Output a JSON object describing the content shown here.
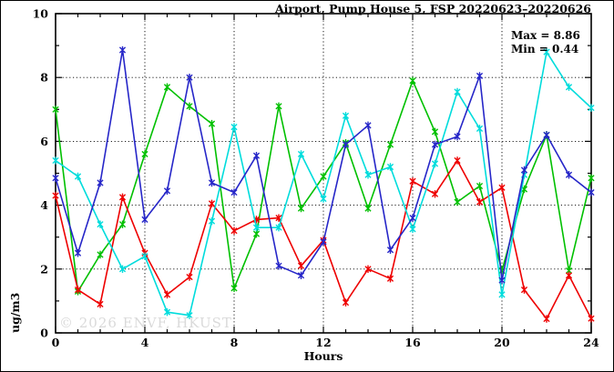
{
  "chart": {
    "watermark": "© 2026 ENVF, HKUST",
    "annotation": {
      "max": "Max = 8.86",
      "min": "Min = 0.44"
    }
  },
  "chart_data": {
    "type": "line",
    "title": "Airport, Pump House 5, FSP 20220623–20220626",
    "xlabel": "Hours",
    "ylabel": "ug/m3",
    "xlim": [
      0,
      24
    ],
    "ylim": [
      0,
      10
    ],
    "xticks": [
      0,
      4,
      8,
      12,
      16,
      20,
      24
    ],
    "yticks": [
      0,
      2,
      4,
      6,
      8,
      10
    ],
    "grid": true,
    "legend": false,
    "max": 8.86,
    "min": 0.44,
    "x": [
      0,
      1,
      2,
      3,
      4,
      5,
      6,
      7,
      8,
      9,
      10,
      11,
      12,
      13,
      14,
      15,
      16,
      17,
      18,
      19,
      20,
      21,
      22,
      23,
      24
    ],
    "series": [
      {
        "name": "green",
        "color": "#00c000",
        "values": [
          7.0,
          1.3,
          2.45,
          3.4,
          5.6,
          7.7,
          7.1,
          6.55,
          1.4,
          3.1,
          7.1,
          3.9,
          4.9,
          5.95,
          3.9,
          5.9,
          7.9,
          6.3,
          4.1,
          4.6,
          1.95,
          4.5,
          6.2,
          1.95,
          4.85
        ]
      },
      {
        "name": "red",
        "color": "#ee0000",
        "values": [
          4.3,
          1.35,
          0.9,
          4.25,
          2.5,
          1.2,
          1.75,
          4.05,
          3.2,
          3.55,
          3.6,
          2.1,
          2.9,
          0.95,
          2.0,
          1.7,
          4.75,
          4.35,
          5.4,
          4.1,
          4.55,
          1.35,
          0.44,
          1.8,
          0.45
        ]
      },
      {
        "name": "cyan",
        "color": "#00dcdc",
        "values": [
          5.4,
          4.9,
          3.4,
          2.0,
          2.4,
          0.65,
          0.55,
          3.5,
          6.45,
          3.3,
          3.3,
          5.6,
          4.2,
          6.8,
          4.95,
          5.2,
          3.25,
          5.3,
          7.55,
          6.4,
          1.2,
          4.95,
          8.8,
          7.7,
          7.05
        ]
      },
      {
        "name": "blue",
        "color": "#2626c8",
        "values": [
          4.85,
          2.5,
          4.7,
          8.86,
          3.55,
          4.45,
          8.0,
          4.7,
          4.4,
          5.55,
          2.1,
          1.8,
          2.85,
          5.9,
          6.5,
          2.6,
          3.6,
          5.9,
          6.15,
          8.05,
          1.65,
          5.1,
          6.2,
          4.95,
          4.4
        ]
      }
    ]
  }
}
